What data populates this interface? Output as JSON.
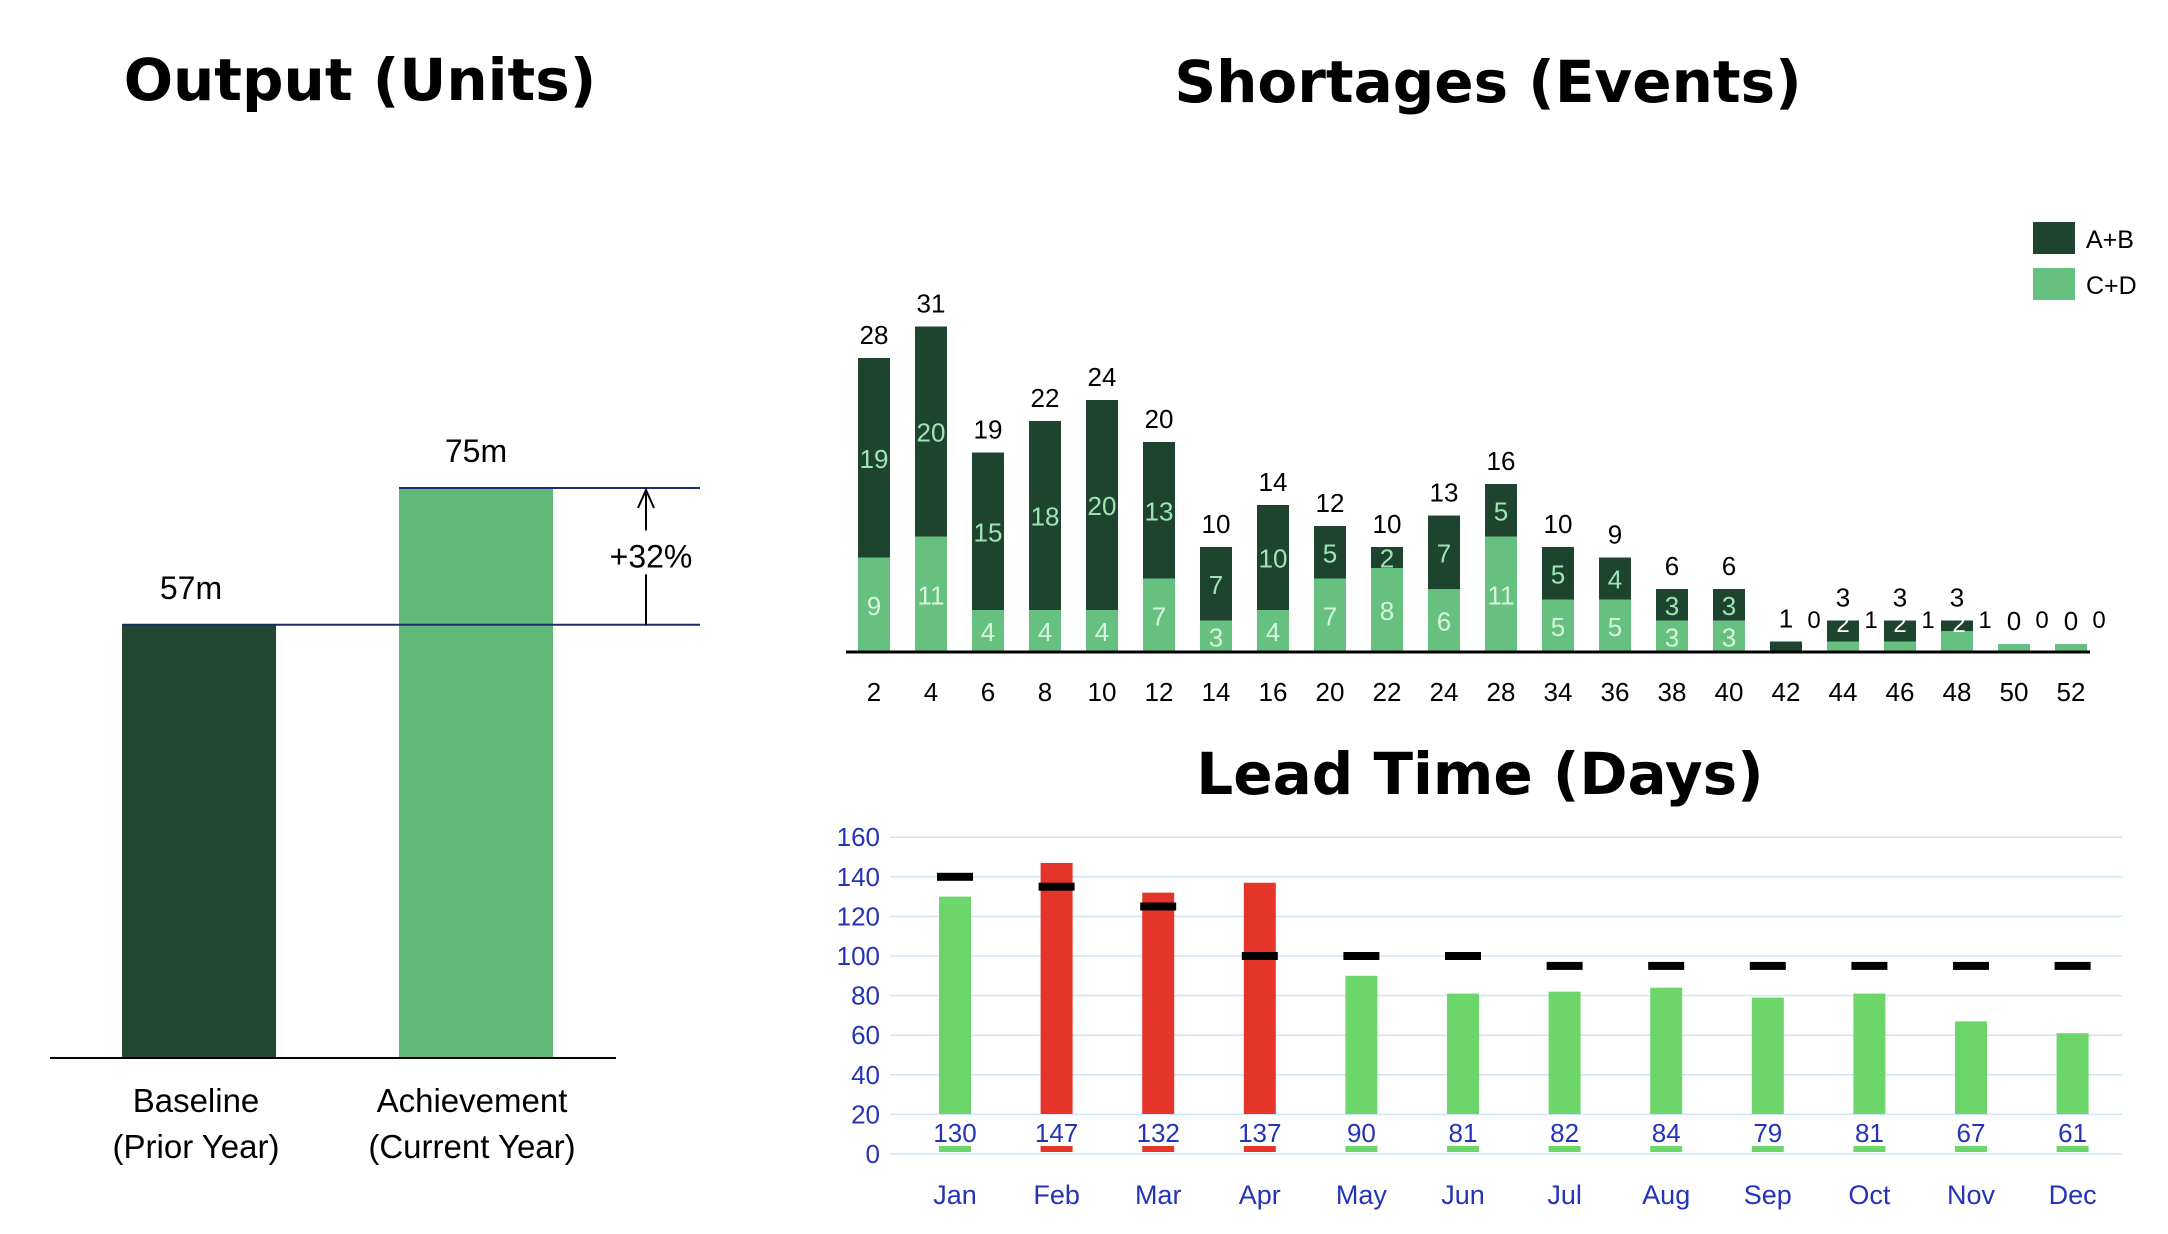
{
  "chart_data": [
    {
      "type": "bar",
      "title": "Output (Units)",
      "categories": [
        [
          "Baseline",
          "(Prior Year)"
        ],
        [
          "Achievement",
          "(Current Year)"
        ]
      ],
      "values": [
        57,
        75
      ],
      "value_labels": [
        "57m",
        "75m"
      ],
      "colors": [
        "#224834",
        "#5fb878"
      ],
      "annotation": "+32%",
      "ylim": [
        0,
        100
      ]
    },
    {
      "type": "bar",
      "stacked": true,
      "title": "Shortages (Events)",
      "categories": [
        "2",
        "4",
        "6",
        "8",
        "10",
        "12",
        "14",
        "16",
        "20",
        "22",
        "24",
        "28",
        "34",
        "36",
        "38",
        "40",
        "42",
        "44",
        "46",
        "48",
        "50",
        "52"
      ],
      "totals": [
        28,
        31,
        19,
        22,
        24,
        20,
        10,
        14,
        12,
        10,
        13,
        16,
        10,
        9,
        6,
        6,
        1,
        3,
        3,
        3,
        0,
        0
      ],
      "series": [
        {
          "name": "A+B",
          "color": "#1e4430",
          "values": [
            19,
            20,
            15,
            18,
            20,
            13,
            7,
            10,
            5,
            2,
            7,
            5,
            5,
            4,
            3,
            3,
            1,
            2,
            2,
            1,
            0,
            0
          ]
        },
        {
          "name": "C+D",
          "color": "#66c080",
          "values": [
            9,
            11,
            4,
            4,
            4,
            7,
            3,
            4,
            7,
            8,
            6,
            11,
            5,
            5,
            3,
            3,
            0,
            1,
            1,
            2,
            0,
            0
          ]
        }
      ],
      "legend": "top-right",
      "ylim": [
        0,
        33
      ]
    },
    {
      "type": "bar",
      "title": "Lead Time (Days)",
      "categories": [
        "Jan",
        "Feb",
        "Mar",
        "Apr",
        "May",
        "Jun",
        "Jul",
        "Aug",
        "Sep",
        "Oct",
        "Nov",
        "Dec"
      ],
      "values": [
        130,
        147,
        132,
        137,
        90,
        81,
        82,
        84,
        79,
        81,
        67,
        61
      ],
      "targets": [
        140,
        135,
        125,
        100,
        100,
        100,
        95,
        95,
        95,
        95,
        95,
        95
      ],
      "bar_colors": [
        "#6cd66a",
        "#e5342a",
        "#e5342a",
        "#e5342a",
        "#6cd66a",
        "#6cd66a",
        "#6cd66a",
        "#6cd66a",
        "#6cd66a",
        "#6cd66a",
        "#6cd66a",
        "#6cd66a"
      ],
      "yticks": [
        0,
        20,
        40,
        60,
        80,
        100,
        120,
        140,
        160
      ],
      "ylim": [
        0,
        160
      ],
      "grid": true
    }
  ]
}
